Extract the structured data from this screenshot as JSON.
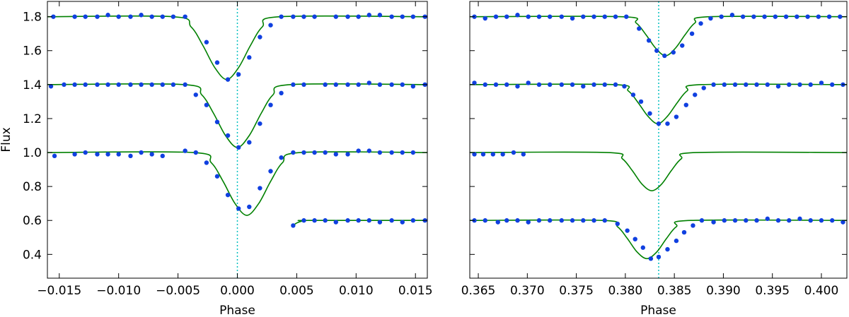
{
  "chart_data": [
    {
      "type": "scatter-line",
      "xlabel": "Phase",
      "ylabel": "Flux",
      "xlim": [
        -0.016,
        0.016
      ],
      "ylim": [
        0.26,
        1.89
      ],
      "xticks": [
        {
          "value": -0.015,
          "label": "−0.015"
        },
        {
          "value": -0.01,
          "label": "−0.010"
        },
        {
          "value": -0.005,
          "label": "−0.005"
        },
        {
          "value": 0,
          "label": "0.000"
        },
        0.005,
        {
          "value": 0.01,
          "label": "0.010"
        },
        0.015
      ],
      "yticks": [
        0.4,
        0.6,
        0.8,
        {
          "value": 1.0,
          "label": "1.0"
        },
        1.2,
        1.4,
        1.6,
        1.8
      ],
      "ytick_labels": true,
      "vline": 0,
      "vline_color": "#00bfbf",
      "series": [
        {
          "mode": "markers",
          "color": "#1040e0",
          "x": [
            -0.0155,
            -0.0137,
            -0.0128,
            -0.0118,
            -0.0109,
            -0.01,
            -0.009,
            -0.0081,
            -0.0072,
            -0.0063,
            -0.0054,
            -0.0044,
            -0.0026,
            -0.0017,
            -0.0008,
            0.0001,
            0.001,
            0.0019,
            0.0028,
            0.0037,
            0.0047,
            0.0056,
            0.0065,
            0.0083,
            0.0093,
            0.0102,
            0.0111,
            0.012,
            0.013,
            0.0139,
            0.0148,
            0.0158
          ],
          "values": [
            1.8,
            1.8,
            1.8,
            1.8,
            1.81,
            1.8,
            1.8,
            1.81,
            1.8,
            1.8,
            1.8,
            1.8,
            1.65,
            1.53,
            1.43,
            1.46,
            1.56,
            1.68,
            1.75,
            1.8,
            1.8,
            1.8,
            1.8,
            1.8,
            1.8,
            1.8,
            1.81,
            1.81,
            1.8,
            1.8,
            1.8,
            1.8
          ]
        },
        {
          "mode": "markers",
          "color": "#1040e0",
          "x": [
            -0.0157,
            -0.0146,
            -0.0137,
            -0.0128,
            -0.0118,
            -0.0109,
            -0.01,
            -0.009,
            -0.0081,
            -0.0072,
            -0.0063,
            -0.0054,
            -0.0044,
            -0.0035,
            -0.0026,
            -0.0017,
            -0.0008,
            0.0001,
            0.001,
            0.0019,
            0.0028,
            0.0037,
            0.0047,
            0.0056,
            0.0074,
            0.0083,
            0.0093,
            0.0102,
            0.0111,
            0.012,
            0.013,
            0.0139,
            0.0148,
            0.0158
          ],
          "values": [
            1.39,
            1.4,
            1.4,
            1.4,
            1.4,
            1.4,
            1.4,
            1.4,
            1.4,
            1.4,
            1.4,
            1.4,
            1.4,
            1.34,
            1.28,
            1.18,
            1.1,
            1.03,
            1.06,
            1.17,
            1.28,
            1.35,
            1.4,
            1.4,
            1.4,
            1.4,
            1.4,
            1.4,
            1.41,
            1.4,
            1.4,
            1.4,
            1.39,
            1.4
          ]
        },
        {
          "mode": "markers",
          "color": "#1040e0",
          "x": [
            -0.0154,
            -0.0137,
            -0.0128,
            -0.0118,
            -0.0109,
            -0.01,
            -0.009,
            -0.0081,
            -0.0072,
            -0.0063,
            -0.0044,
            -0.0035,
            -0.0026,
            -0.0017,
            -0.0008,
            0.0001,
            0.001,
            0.0019,
            0.0028,
            0.0037,
            0.0047,
            0.0056,
            0.0065,
            0.0074,
            0.0083,
            0.0093,
            0.0102,
            0.0111,
            0.012,
            0.013,
            0.0139,
            0.0148
          ],
          "values": [
            0.98,
            0.99,
            1.0,
            0.99,
            0.99,
            0.99,
            0.98,
            1.0,
            0.99,
            0.98,
            1.01,
            1.0,
            0.94,
            0.86,
            0.75,
            0.67,
            0.68,
            0.79,
            0.89,
            0.97,
            1.0,
            1.0,
            1.0,
            1.0,
            0.99,
            0.99,
            1.01,
            1.01,
            1.0,
            1.0,
            1.0,
            1.0
          ]
        },
        {
          "mode": "markers",
          "color": "#1040e0",
          "x": [
            0.0047,
            0.0056,
            0.0065,
            0.0074,
            0.0083,
            0.0093,
            0.0102,
            0.0111,
            0.012,
            0.013,
            0.0139,
            0.0148,
            0.0158
          ],
          "values": [
            0.57,
            0.6,
            0.6,
            0.6,
            0.59,
            0.6,
            0.6,
            0.6,
            0.59,
            0.6,
            0.59,
            0.6,
            0.6
          ]
        },
        {
          "mode": "line",
          "color": "#008000",
          "x": [
            -0.016,
            -0.0054,
            -0.0039,
            -0.0029,
            -0.0019,
            -0.0009,
            0.0001,
            0.0011,
            0.0021,
            0.0036,
            0.016
          ],
          "values": [
            1.8,
            1.8,
            1.74,
            1.63,
            1.5,
            1.43,
            1.5,
            1.63,
            1.74,
            1.8,
            1.8
          ]
        },
        {
          "mode": "line",
          "color": "#008000",
          "x": [
            -0.016,
            -0.0045,
            -0.003,
            -0.002,
            -0.001,
            0,
            0.001,
            0.002,
            0.003,
            0.0045,
            0.016
          ],
          "values": [
            1.4,
            1.4,
            1.34,
            1.23,
            1.1,
            1.03,
            1.1,
            1.23,
            1.34,
            1.4,
            1.4
          ]
        },
        {
          "mode": "line",
          "color": "#008000",
          "x": [
            -0.016,
            -0.0037,
            -0.0022,
            -0.0012,
            -0.0002,
            0.0008,
            0.0018,
            0.0028,
            0.0038,
            0.0053,
            0.016
          ],
          "values": [
            1,
            1,
            0.94,
            0.83,
            0.7,
            0.63,
            0.7,
            0.83,
            0.94,
            1,
            1
          ]
        },
        {
          "mode": "line",
          "color": "#008000",
          "x": [
            0.0047,
            0.005,
            0.0055,
            0.006,
            0.016
          ],
          "values": [
            0.57,
            0.585,
            0.597,
            0.6,
            0.6
          ]
        }
      ]
    },
    {
      "type": "scatter-line",
      "xlabel": "Phase",
      "xlim": [
        0.36413,
        0.4026
      ],
      "ylim": [
        0.26,
        1.89
      ],
      "xticks": [
        0.365,
        {
          "value": 0.37,
          "label": "0.370"
        },
        0.375,
        {
          "value": 0.38,
          "label": "0.380"
        },
        0.385,
        {
          "value": 0.39,
          "label": "0.390"
        },
        0.395,
        {
          "value": 0.4,
          "label": "0.400"
        }
      ],
      "yticks": [
        0.4,
        0.6,
        0.8,
        1.0,
        1.2,
        1.4,
        1.6,
        1.8
      ],
      "ytick_labels": false,
      "vline": 0.3834,
      "vline_color": "#00bfbf",
      "series": [
        {
          "mode": "markers",
          "color": "#1040e0",
          "x": [
            0.3646,
            0.3657,
            0.3668,
            0.3679,
            0.369,
            0.3701,
            0.3712,
            0.3723,
            0.3735,
            0.3746,
            0.3757,
            0.3768,
            0.3779,
            0.379,
            0.3801,
            0.3814,
            0.3824,
            0.3832,
            0.384,
            0.3849,
            0.3858,
            0.3868,
            0.3877,
            0.3887,
            0.3898,
            0.3909,
            0.392,
            0.3931,
            0.3942,
            0.3953,
            0.3964,
            0.3975,
            0.3986,
            0.3997,
            0.4008,
            0.4019
          ],
          "values": [
            1.8,
            1.79,
            1.8,
            1.8,
            1.81,
            1.8,
            1.8,
            1.8,
            1.8,
            1.79,
            1.8,
            1.8,
            1.8,
            1.8,
            1.8,
            1.73,
            1.66,
            1.6,
            1.57,
            1.59,
            1.63,
            1.7,
            1.76,
            1.79,
            1.8,
            1.81,
            1.8,
            1.8,
            1.8,
            1.8,
            1.8,
            1.8,
            1.8,
            1.8,
            1.8,
            1.8
          ]
        },
        {
          "mode": "markers",
          "color": "#1040e0",
          "x": [
            0.3646,
            0.3657,
            0.3668,
            0.3679,
            0.369,
            0.3701,
            0.3712,
            0.3723,
            0.3735,
            0.3746,
            0.3757,
            0.3768,
            0.3779,
            0.379,
            0.3799,
            0.3808,
            0.3816,
            0.3825,
            0.3834,
            0.3843,
            0.3852,
            0.3862,
            0.3871,
            0.388,
            0.389,
            0.3901,
            0.3912,
            0.3923,
            0.3934,
            0.3945,
            0.3956,
            0.3967,
            0.3978,
            0.3989,
            0.4,
            0.4011,
            0.4022
          ],
          "values": [
            1.41,
            1.4,
            1.4,
            1.4,
            1.39,
            1.41,
            1.4,
            1.4,
            1.4,
            1.4,
            1.39,
            1.4,
            1.4,
            1.4,
            1.39,
            1.34,
            1.3,
            1.23,
            1.17,
            1.17,
            1.21,
            1.28,
            1.34,
            1.38,
            1.4,
            1.4,
            1.4,
            1.4,
            1.4,
            1.4,
            1.39,
            1.4,
            1.4,
            1.4,
            1.41,
            1.4,
            1.4
          ]
        },
        {
          "mode": "markers",
          "color": "#1040e0",
          "x": [
            0.3646,
            0.3655,
            0.3665,
            0.3675,
            0.3686,
            0.3696
          ],
          "values": [
            0.99,
            0.99,
            0.99,
            0.99,
            1.0,
            0.99
          ]
        },
        {
          "mode": "markers",
          "color": "#1040e0",
          "x": [
            0.3646,
            0.3657,
            0.367,
            0.3679,
            0.369,
            0.3701,
            0.3712,
            0.3723,
            0.3735,
            0.3746,
            0.3757,
            0.3768,
            0.3779,
            0.3792,
            0.3802,
            0.381,
            0.3818,
            0.3826,
            0.3834,
            0.3843,
            0.3852,
            0.386,
            0.3869,
            0.3878,
            0.389,
            0.3901,
            0.3912,
            0.3923,
            0.3934,
            0.3945,
            0.3956,
            0.3967,
            0.3978,
            0.3989,
            0.4,
            0.4011,
            0.4022
          ],
          "values": [
            0.6,
            0.6,
            0.59,
            0.6,
            0.6,
            0.59,
            0.6,
            0.6,
            0.6,
            0.6,
            0.6,
            0.6,
            0.6,
            0.58,
            0.54,
            0.49,
            0.44,
            0.375,
            0.385,
            0.43,
            0.48,
            0.53,
            0.57,
            0.6,
            0.59,
            0.6,
            0.6,
            0.6,
            0.6,
            0.61,
            0.6,
            0.6,
            0.61,
            0.6,
            0.6,
            0.6,
            0.59
          ]
        },
        {
          "mode": "line",
          "color": "#008000",
          "x": [
            0.36413,
            0.3796,
            0.3811,
            0.3821,
            0.3831,
            0.3841,
            0.3851,
            0.3861,
            0.3871,
            0.3886,
            0.4026
          ],
          "values": [
            1.8,
            1.8,
            1.763,
            1.694,
            1.614,
            1.57,
            1.614,
            1.694,
            1.763,
            1.8,
            1.8
          ]
        },
        {
          "mode": "line",
          "color": "#008000",
          "x": [
            0.36413,
            0.3788,
            0.3803,
            0.3813,
            0.3823,
            0.3833,
            0.3843,
            0.3853,
            0.3863,
            0.3878,
            0.4026
          ],
          "values": [
            1.4,
            1.4,
            1.363,
            1.294,
            1.214,
            1.17,
            1.214,
            1.294,
            1.363,
            1.4,
            1.4
          ]
        },
        {
          "mode": "line",
          "color": "#008000",
          "x": [
            0.36413,
            0.3782,
            0.3797,
            0.3807,
            0.3817,
            0.3827,
            0.3837,
            0.3847,
            0.3857,
            0.3872,
            0.4026
          ],
          "values": [
            1,
            1,
            0.963,
            0.894,
            0.814,
            0.775,
            0.814,
            0.894,
            0.963,
            1,
            1
          ]
        },
        {
          "mode": "line",
          "color": "#008000",
          "x": [
            0.36413,
            0.3777,
            0.3792,
            0.3802,
            0.3812,
            0.3822,
            0.3832,
            0.3842,
            0.3852,
            0.3867,
            0.4026
          ],
          "values": [
            0.6,
            0.6,
            0.563,
            0.494,
            0.414,
            0.375,
            0.414,
            0.494,
            0.563,
            0.6,
            0.6
          ]
        }
      ]
    }
  ]
}
